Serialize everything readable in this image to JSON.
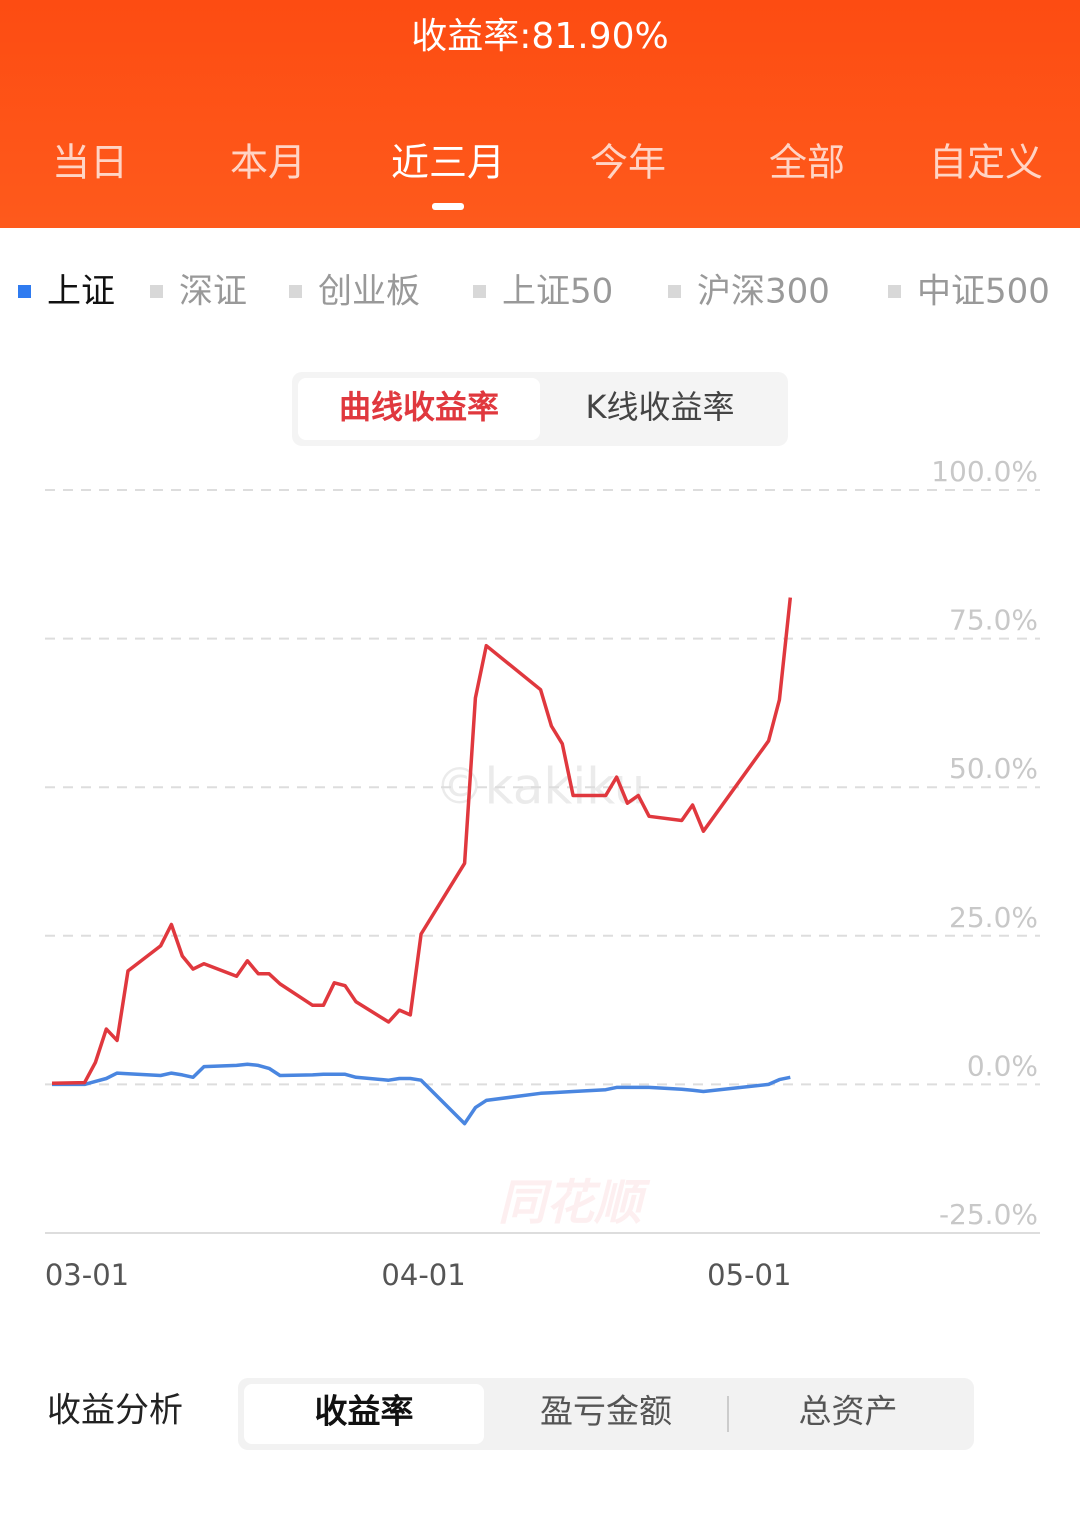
{
  "header": {
    "title": "收益率:81.90%",
    "tabs": [
      "当日",
      "本月",
      "近三月",
      "今年",
      "全部",
      "自定义"
    ],
    "active_tab": 2
  },
  "index_tabs": {
    "items": [
      "上证",
      "深证",
      "创业板",
      "上证50",
      "沪深300",
      "中证500"
    ],
    "active": 0
  },
  "chart_toggle": {
    "items": [
      "曲线收益率",
      "K线收益率"
    ],
    "active": 0
  },
  "chart_data": {
    "type": "line",
    "x": [
      "03-01",
      "03-04",
      "03-05",
      "03-06",
      "03-07",
      "03-08",
      "03-11",
      "03-12",
      "03-13",
      "03-14",
      "03-15",
      "03-18",
      "03-19",
      "03-20",
      "03-21",
      "03-22",
      "03-25",
      "03-26",
      "03-27",
      "03-28",
      "03-29",
      "04-01",
      "04-02",
      "04-03",
      "04-04",
      "04-08",
      "04-09",
      "04-10",
      "04-15",
      "04-16",
      "04-17",
      "04-18",
      "04-21",
      "04-22",
      "04-23",
      "04-24",
      "04-25",
      "04-28",
      "04-29",
      "04-30",
      "05-06",
      "05-07",
      "05-08"
    ],
    "series": [
      {
        "color": "#e0383e",
        "values": [
          0.2,
          0.3,
          3.7,
          9.3,
          7.4,
          19.1,
          23.3,
          26.9,
          21.6,
          19.4,
          20.3,
          18.2,
          20.8,
          18.6,
          18.6,
          16.9,
          13.3,
          13.3,
          17.1,
          16.6,
          13.9,
          10.5,
          12.5,
          11.7,
          25.3,
          37.2,
          65.0,
          73.8,
          66.4,
          60.3,
          57.3,
          48.6,
          48.6,
          51.7,
          47.3,
          48.6,
          45.1,
          44.4,
          47.0,
          42.6,
          57.8,
          64.7,
          81.9
        ]
      },
      {
        "color": "#4a86e0",
        "values": [
          0,
          0,
          0.5,
          1.0,
          1.9,
          1.8,
          1.5,
          1.9,
          1.6,
          1.2,
          3.0,
          3.2,
          3.4,
          3.2,
          2.7,
          1.5,
          1.6,
          1.7,
          1.7,
          1.7,
          1.2,
          0.7,
          1.0,
          1.0,
          0.7,
          -6.6,
          -3.9,
          -2.7,
          -1.5,
          -1.4,
          -1.3,
          -1.2,
          -0.9,
          -0.5,
          -0.5,
          -0.5,
          -0.5,
          -0.8,
          -1.0,
          -1.2,
          0,
          0.8,
          1.2
        ]
      }
    ],
    "xlim": [
      "03-01",
      "05-31"
    ],
    "xticks": [
      "03-01",
      "04-01",
      "05-01"
    ],
    "ylim": [
      -25,
      100
    ],
    "yticks": [
      {
        "value": -25,
        "label": "-25.0%"
      },
      {
        "value": 0,
        "label": "0.0%"
      },
      {
        "value": 25,
        "label": "25.0%"
      },
      {
        "value": 50,
        "label": "50.0%"
      },
      {
        "value": 75,
        "label": "75.0%"
      },
      {
        "value": 100,
        "label": "100.0%"
      }
    ],
    "grid": true
  },
  "watermarks": [
    "©kakiku",
    "同花顺"
  ],
  "analysis": {
    "title": "收益分析",
    "tabs": [
      "收益率",
      "盈亏金额",
      "总资产"
    ],
    "active": 0
  }
}
